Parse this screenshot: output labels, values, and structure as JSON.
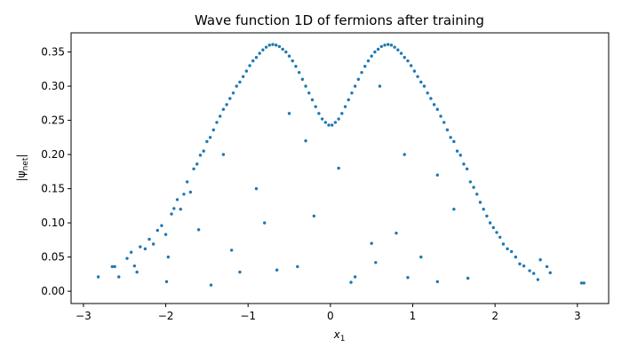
{
  "chart_data": {
    "type": "scatter",
    "title": "Wave function 1D of fermions after training",
    "xlabel": "x",
    "xlabel_subscript": "1",
    "ylabel": "|ψ",
    "ylabel_subscript": "net",
    "ylabel_suffix": "|",
    "xlim": [
      -3.15,
      3.38
    ],
    "ylim": [
      -0.018,
      0.378
    ],
    "xticks": [
      -3,
      -2,
      -1,
      0,
      1,
      2,
      3
    ],
    "xtick_labels": [
      "−3",
      "−2",
      "−1",
      "0",
      "1",
      "2",
      "3"
    ],
    "yticks": [
      0.0,
      0.05,
      0.1,
      0.15,
      0.2,
      0.25,
      0.3,
      0.35
    ],
    "ytick_labels": [
      "0.00",
      "0.05",
      "0.10",
      "0.15",
      "0.20",
      "0.25",
      "0.30",
      "0.35"
    ],
    "grid": false,
    "marker_color": "#1f77b4",
    "envelope": "upper boundary of points follows |psi| = 2·|x|·exp(-x^2)/sqrt(pi)·sqrt(2)·... peaking near 0.36 at x ≈ ±0.7, dipping to ≈0.25 at x = 0",
    "series": [
      {
        "points": [
          [
            -2.82,
            0.021
          ],
          [
            -2.65,
            0.036
          ],
          [
            -2.62,
            0.036
          ],
          [
            -2.57,
            0.021
          ],
          [
            -2.47,
            0.048
          ],
          [
            -2.42,
            0.057
          ],
          [
            -2.38,
            0.037
          ],
          [
            -2.35,
            0.028
          ],
          [
            -2.31,
            0.065
          ],
          [
            -2.25,
            0.062
          ],
          [
            -2.2,
            0.076
          ],
          [
            -2.15,
            0.069
          ],
          [
            -2.1,
            0.089
          ],
          [
            -2.05,
            0.096
          ],
          [
            -2.0,
            0.083
          ],
          [
            -1.97,
            0.05
          ],
          [
            -1.93,
            0.113
          ],
          [
            -1.9,
            0.121
          ],
          [
            -1.86,
            0.134
          ],
          [
            -1.82,
            0.12
          ],
          [
            -1.78,
            0.142
          ],
          [
            -1.74,
            0.16
          ],
          [
            -1.7,
            0.145
          ],
          [
            -1.66,
            0.179
          ],
          [
            -1.62,
            0.186
          ],
          [
            -1.58,
            0.199
          ],
          [
            -1.54,
            0.205
          ],
          [
            -1.5,
            0.219
          ],
          [
            -1.46,
            0.225
          ],
          [
            -1.42,
            0.236
          ],
          [
            -1.38,
            0.247
          ],
          [
            -1.34,
            0.256
          ],
          [
            -1.3,
            0.266
          ],
          [
            -1.26,
            0.273
          ],
          [
            -1.22,
            0.282
          ],
          [
            -1.18,
            0.29
          ],
          [
            -1.14,
            0.3
          ],
          [
            -1.1,
            0.306
          ],
          [
            -1.06,
            0.314
          ],
          [
            -1.02,
            0.322
          ],
          [
            -0.98,
            0.33
          ],
          [
            -0.94,
            0.337
          ],
          [
            -0.9,
            0.342
          ],
          [
            -0.86,
            0.348
          ],
          [
            -0.82,
            0.353
          ],
          [
            -0.78,
            0.357
          ],
          [
            -0.74,
            0.36
          ],
          [
            -0.7,
            0.361
          ],
          [
            -0.66,
            0.36
          ],
          [
            -0.62,
            0.358
          ],
          [
            -0.58,
            0.354
          ],
          [
            -0.54,
            0.35
          ],
          [
            -0.5,
            0.344
          ],
          [
            -0.46,
            0.337
          ],
          [
            -0.42,
            0.329
          ],
          [
            -0.38,
            0.32
          ],
          [
            -0.34,
            0.31
          ],
          [
            -0.3,
            0.3
          ],
          [
            -0.26,
            0.29
          ],
          [
            -0.22,
            0.28
          ],
          [
            -0.18,
            0.27
          ],
          [
            -0.14,
            0.26
          ],
          [
            -0.1,
            0.252
          ],
          [
            -0.06,
            0.247
          ],
          [
            -0.02,
            0.243
          ],
          [
            0.02,
            0.243
          ],
          [
            0.06,
            0.247
          ],
          [
            0.1,
            0.252
          ],
          [
            0.14,
            0.26
          ],
          [
            0.18,
            0.27
          ],
          [
            0.22,
            0.28
          ],
          [
            0.26,
            0.29
          ],
          [
            0.3,
            0.3
          ],
          [
            0.34,
            0.31
          ],
          [
            0.38,
            0.32
          ],
          [
            0.42,
            0.329
          ],
          [
            0.46,
            0.337
          ],
          [
            0.5,
            0.344
          ],
          [
            0.54,
            0.35
          ],
          [
            0.58,
            0.354
          ],
          [
            0.62,
            0.358
          ],
          [
            0.66,
            0.36
          ],
          [
            0.7,
            0.361
          ],
          [
            0.74,
            0.36
          ],
          [
            0.78,
            0.357
          ],
          [
            0.82,
            0.353
          ],
          [
            0.86,
            0.348
          ],
          [
            0.9,
            0.342
          ],
          [
            0.94,
            0.337
          ],
          [
            0.98,
            0.33
          ],
          [
            1.02,
            0.322
          ],
          [
            1.06,
            0.314
          ],
          [
            1.1,
            0.306
          ],
          [
            1.14,
            0.3
          ],
          [
            1.18,
            0.29
          ],
          [
            1.22,
            0.282
          ],
          [
            1.26,
            0.273
          ],
          [
            1.3,
            0.266
          ],
          [
            1.34,
            0.256
          ],
          [
            1.38,
            0.247
          ],
          [
            1.42,
            0.236
          ],
          [
            1.46,
            0.225
          ],
          [
            1.5,
            0.219
          ],
          [
            1.54,
            0.205
          ],
          [
            1.58,
            0.199
          ],
          [
            1.62,
            0.186
          ],
          [
            1.66,
            0.179
          ],
          [
            1.7,
            0.16
          ],
          [
            1.74,
            0.152
          ],
          [
            1.78,
            0.142
          ],
          [
            1.82,
            0.13
          ],
          [
            1.86,
            0.12
          ],
          [
            1.9,
            0.11
          ],
          [
            1.94,
            0.1
          ],
          [
            1.98,
            0.093
          ],
          [
            2.02,
            0.086
          ],
          [
            2.06,
            0.079
          ],
          [
            2.1,
            0.069
          ],
          [
            2.15,
            0.062
          ],
          [
            2.2,
            0.058
          ],
          [
            2.25,
            0.05
          ],
          [
            2.3,
            0.04
          ],
          [
            2.35,
            0.037
          ],
          [
            2.42,
            0.03
          ],
          [
            2.47,
            0.026
          ],
          [
            2.52,
            0.017
          ],
          [
            2.55,
            0.046
          ],
          [
            2.63,
            0.036
          ],
          [
            2.67,
            0.027
          ],
          [
            3.05,
            0.012
          ],
          [
            3.08,
            0.012
          ],
          [
            -1.99,
            0.014
          ],
          [
            -1.45,
            0.009
          ],
          [
            -1.1,
            0.028
          ],
          [
            -0.65,
            0.031
          ],
          [
            -0.4,
            0.036
          ],
          [
            0.25,
            0.013
          ],
          [
            0.3,
            0.021
          ],
          [
            0.55,
            0.042
          ],
          [
            0.94,
            0.02
          ],
          [
            1.3,
            0.014
          ],
          [
            1.67,
            0.019
          ],
          [
            0.8,
            0.085
          ],
          [
            -0.8,
            0.1
          ],
          [
            -0.2,
            0.11
          ],
          [
            0.5,
            0.07
          ],
          [
            -1.2,
            0.06
          ],
          [
            1.1,
            0.05
          ],
          [
            -0.9,
            0.15
          ],
          [
            0.9,
            0.2
          ],
          [
            0.1,
            0.18
          ],
          [
            -0.3,
            0.22
          ],
          [
            1.5,
            0.12
          ],
          [
            -1.6,
            0.09
          ],
          [
            -0.5,
            0.26
          ],
          [
            0.6,
            0.3
          ],
          [
            1.3,
            0.17
          ],
          [
            -1.3,
            0.2
          ]
        ]
      }
    ]
  }
}
